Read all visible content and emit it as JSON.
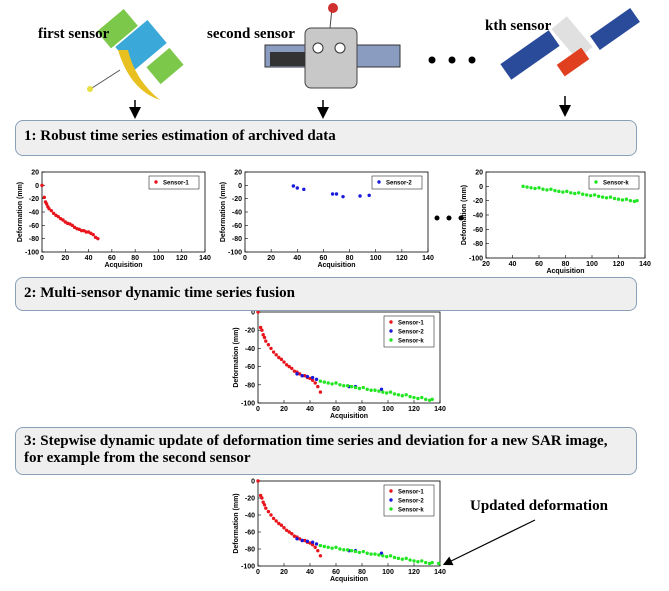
{
  "sensors": [
    "first sensor",
    "second sensor",
    "kth sensor"
  ],
  "steps": [
    "1: Robust time series estimation of archived data",
    "2: Multi-sensor dynamic time series fusion",
    "3: Stepwise dynamic update of deformation time series and deviation for a new SAR image, for example from the second sensor"
  ],
  "annotation": "Updated deformation",
  "chart_data": [
    {
      "type": "scatter",
      "series": [
        {
          "name": "Sensor-1",
          "color": "#e8141c",
          "x": [
            0,
            2,
            3,
            4,
            5,
            6,
            8,
            10,
            12,
            14,
            16,
            18,
            20,
            22,
            24,
            26,
            28,
            30,
            32,
            34,
            36,
            38,
            40,
            42,
            44,
            46,
            48
          ],
          "values": [
            0,
            -18,
            -25,
            -28,
            -32,
            -35,
            -38,
            -42,
            -45,
            -47,
            -50,
            -52,
            -55,
            -57,
            -58,
            -60,
            -63,
            -65,
            -66,
            -68,
            -68,
            -70,
            -70,
            -72,
            -74,
            -78,
            -80
          ]
        }
      ],
      "xlim": [
        0,
        140
      ],
      "xticks": [
        0,
        20,
        40,
        60,
        80,
        100,
        120,
        140
      ],
      "ylim": [
        -100,
        20
      ],
      "yticks": [
        -100,
        -80,
        -60,
        -40,
        -20,
        0,
        20
      ],
      "x_label": "Acquisition",
      "y_label": "Deformation (mm)",
      "legend": "upper right"
    },
    {
      "type": "scatter",
      "series": [
        {
          "name": "Sensor-2",
          "color": "#1a1adc",
          "x": [
            37,
            40,
            45,
            67,
            70,
            75,
            88,
            95
          ],
          "values": [
            -1,
            -4,
            -6,
            -13,
            -13,
            -17,
            -16,
            -15
          ]
        }
      ],
      "xlim": [
        0,
        140
      ],
      "xticks": [
        0,
        20,
        40,
        60,
        80,
        100,
        120,
        140
      ],
      "ylim": [
        -100,
        20
      ],
      "yticks": [
        -100,
        -80,
        -60,
        -40,
        -20,
        0,
        20
      ],
      "x_label": "Acquisition",
      "y_label": "Deformation (mm)",
      "legend": "upper right"
    },
    {
      "type": "scatter",
      "series": [
        {
          "name": "Sensor-k",
          "color": "#22e622",
          "x": [
            48,
            51,
            54,
            57,
            60,
            63,
            66,
            69,
            72,
            75,
            78,
            81,
            84,
            87,
            90,
            93,
            96,
            99,
            102,
            105,
            108,
            111,
            114,
            117,
            120,
            123,
            126,
            129,
            132,
            134
          ],
          "values": [
            0,
            -1,
            -2,
            -3,
            -2,
            -4,
            -5,
            -4,
            -6,
            -7,
            -8,
            -7,
            -9,
            -10,
            -9,
            -11,
            -12,
            -13,
            -12,
            -14,
            -15,
            -16,
            -15,
            -17,
            -18,
            -19,
            -18,
            -20,
            -21,
            -20
          ]
        }
      ],
      "xlim": [
        20,
        140
      ],
      "xticks": [
        20,
        40,
        60,
        80,
        100,
        120,
        140
      ],
      "ylim": [
        -100,
        20
      ],
      "yticks": [
        -100,
        -80,
        -60,
        -40,
        -20,
        0,
        20
      ],
      "x_label": "Acquisition",
      "y_label": "Deformation (mm)",
      "legend": "upper right"
    },
    {
      "type": "scatter",
      "series": [
        {
          "name": "Sensor-1",
          "color": "#e8141c",
          "x": [
            0,
            2,
            3,
            4,
            5,
            6,
            8,
            10,
            12,
            14,
            16,
            18,
            20,
            22,
            24,
            26,
            28,
            30,
            32,
            34,
            36,
            38,
            40,
            42,
            44,
            46,
            48
          ],
          "values": [
            0,
            -17,
            -20,
            -25,
            -28,
            -32,
            -36,
            -40,
            -44,
            -47,
            -50,
            -52,
            -55,
            -58,
            -60,
            -62,
            -65,
            -66,
            -68,
            -70,
            -70,
            -72,
            -73,
            -75,
            -78,
            -82,
            -88
          ]
        },
        {
          "name": "Sensor-2",
          "color": "#1a1adc",
          "x": [
            30,
            34,
            38,
            42,
            45,
            70,
            75,
            95
          ],
          "values": [
            -68,
            -70,
            -71,
            -72,
            -74,
            -82,
            -82,
            -85
          ]
        },
        {
          "name": "Sensor-k",
          "color": "#22e622",
          "x": [
            48,
            51,
            54,
            57,
            60,
            63,
            66,
            69,
            72,
            75,
            78,
            81,
            84,
            87,
            90,
            93,
            96,
            99,
            102,
            105,
            108,
            111,
            114,
            117,
            120,
            123,
            126,
            129,
            132,
            134
          ],
          "values": [
            -76,
            -77,
            -78,
            -79,
            -78,
            -80,
            -81,
            -81,
            -82,
            -83,
            -84,
            -83,
            -85,
            -86,
            -86,
            -87,
            -88,
            -89,
            -88,
            -90,
            -91,
            -92,
            -91,
            -93,
            -94,
            -95,
            -94,
            -96,
            -97,
            -96
          ]
        }
      ],
      "xlim": [
        0,
        140
      ],
      "xticks": [
        0,
        20,
        40,
        60,
        80,
        100,
        120,
        140
      ],
      "ylim": [
        -100,
        0
      ],
      "yticks": [
        -100,
        -80,
        -60,
        -40,
        -20,
        0
      ],
      "x_label": "Acquisition",
      "y_label": "Deformation (mm)",
      "legend": "upper right"
    },
    {
      "type": "scatter",
      "series": [
        {
          "name": "Sensor-1",
          "color": "#e8141c",
          "x": [
            0,
            2,
            3,
            4,
            5,
            6,
            8,
            10,
            12,
            14,
            16,
            18,
            20,
            22,
            24,
            26,
            28,
            30,
            32,
            34,
            36,
            38,
            40,
            42,
            44,
            46,
            48
          ],
          "values": [
            0,
            -17,
            -20,
            -25,
            -28,
            -32,
            -36,
            -40,
            -44,
            -47,
            -50,
            -52,
            -55,
            -58,
            -60,
            -62,
            -65,
            -66,
            -68,
            -70,
            -70,
            -72,
            -73,
            -75,
            -78,
            -82,
            -88
          ]
        },
        {
          "name": "Sensor-2",
          "color": "#1a1adc",
          "x": [
            30,
            34,
            38,
            42,
            45,
            70,
            75,
            95
          ],
          "values": [
            -68,
            -70,
            -71,
            -72,
            -74,
            -82,
            -82,
            -85
          ]
        },
        {
          "name": "Sensor-k",
          "color": "#22e622",
          "x": [
            48,
            51,
            54,
            57,
            60,
            63,
            66,
            69,
            72,
            75,
            78,
            81,
            84,
            87,
            90,
            93,
            96,
            99,
            102,
            105,
            108,
            111,
            114,
            117,
            120,
            123,
            126,
            129,
            132,
            134,
            139
          ],
          "values": [
            -76,
            -77,
            -78,
            -79,
            -78,
            -80,
            -81,
            -81,
            -82,
            -83,
            -84,
            -83,
            -85,
            -86,
            -86,
            -87,
            -88,
            -89,
            -88,
            -90,
            -91,
            -92,
            -91,
            -93,
            -94,
            -95,
            -94,
            -96,
            -97,
            -96,
            -97
          ]
        }
      ],
      "xlim": [
        0,
        140
      ],
      "xticks": [
        0,
        20,
        40,
        60,
        80,
        100,
        120,
        140
      ],
      "ylim": [
        -100,
        0
      ],
      "yticks": [
        -100,
        -80,
        -60,
        -40,
        -20,
        0
      ],
      "x_label": "Acquisition",
      "y_label": "Deformation (mm)",
      "legend": "upper right"
    }
  ]
}
